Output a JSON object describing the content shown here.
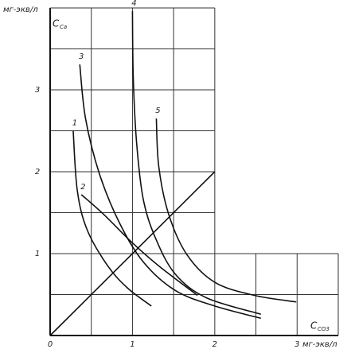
{
  "chart_data": {
    "type": "line",
    "x_unit": "мг-экв/л",
    "y_unit": "мг-экв/л",
    "x_symbol": "C",
    "x_symbol_sub": "CO3",
    "y_symbol": "C",
    "y_symbol_sub": "Ca",
    "xlim": [
      0,
      3.5
    ],
    "ylim": [
      0,
      4
    ],
    "xticks": [
      0,
      1,
      2,
      3
    ],
    "yticks": [
      1,
      2,
      3
    ],
    "x_gridlines": [
      0.5,
      1,
      1.5,
      2,
      2.5,
      3,
      3.5
    ],
    "y_gridlines": [
      0.5,
      1,
      1.5,
      2,
      2.5,
      3,
      3.5,
      4
    ],
    "grid_notch": {
      "x": 2,
      "y": 1
    },
    "color": "#111111",
    "series": [
      {
        "name": "1",
        "x": [
          0.28,
          0.33,
          0.45,
          0.7,
          0.94,
          1.23
        ],
        "values": [
          2.5,
          1.77,
          1.29,
          0.85,
          0.58,
          0.36
        ]
      },
      {
        "name": "2",
        "x": [
          0.38,
          0.65,
          0.99,
          1.32,
          1.79
        ],
        "values": [
          1.72,
          1.48,
          1.14,
          0.85,
          0.49
        ]
      },
      {
        "name": "3",
        "x": [
          0.36,
          0.43,
          0.6,
          0.84,
          1.13,
          1.52,
          2.0,
          2.56
        ],
        "values": [
          3.31,
          2.65,
          1.97,
          1.38,
          0.9,
          0.55,
          0.36,
          0.21
        ]
      },
      {
        "name": "4",
        "x": [
          1.0,
          1.01,
          1.05,
          1.13,
          1.28,
          1.52,
          1.9,
          2.56
        ],
        "values": [
          3.96,
          3.14,
          2.36,
          1.67,
          1.19,
          0.75,
          0.46,
          0.26
        ]
      },
      {
        "name": "5",
        "x": [
          1.29,
          1.32,
          1.44,
          1.66,
          2.0,
          2.48,
          2.99
        ],
        "values": [
          2.65,
          2.06,
          1.48,
          0.99,
          0.65,
          0.49,
          0.41
        ]
      }
    ],
    "reference_line": {
      "x": [
        0,
        2
      ],
      "values": [
        0,
        2
      ]
    }
  }
}
